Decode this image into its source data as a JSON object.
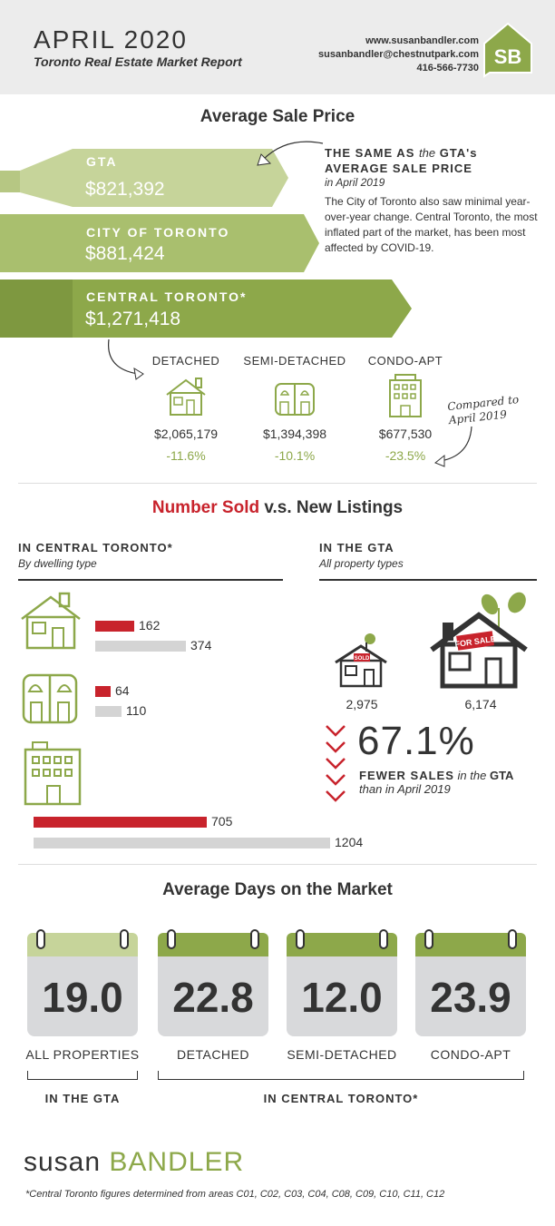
{
  "header": {
    "title": "APRIL 2020",
    "subtitle": "Toronto Real Estate Market Report",
    "website": "www.susanbandler.com",
    "email": "susanbandler@chestnutpark.com",
    "phone": "416-566-7730",
    "logo": "SB"
  },
  "avg_price": {
    "heading": "Average Sale Price",
    "gta_label": "GTA",
    "gta_value": "$821,392",
    "city_label": "CITY OF TORONTO",
    "city_value": "$881,424",
    "central_label": "CENTRAL TORONTO*",
    "central_value": "$1,271,418",
    "note_title_1": "THE SAME AS",
    "note_title_2": "the",
    "note_title_3": "GTA's",
    "note_title_4": "AVERAGE SALE PRICE",
    "note_title_5": "in April 2019",
    "note_body": "The City of Toronto also saw minimal year-over-year change. Central Toronto, the most inflated part of the market, has been most affected by COVID-19.",
    "types": [
      {
        "label": "DETACHED",
        "price": "$2,065,179",
        "change": "-11.6%"
      },
      {
        "label": "SEMI-DETACHED",
        "price": "$1,394,398",
        "change": "-10.1%"
      },
      {
        "label": "CONDO-APT",
        "price": "$677,530",
        "change": "-23.5%"
      }
    ],
    "compared_note": "Compared to April 2019"
  },
  "sold_listings": {
    "heading_red": "Number Sold",
    "heading_rest": "v.s. New Listings",
    "left_title": "IN CENTRAL TORONTO*",
    "left_sub": "By dwelling type",
    "right_title": "IN THE GTA",
    "right_sub": "All property types",
    "rows": [
      {
        "sold": "162",
        "listings": "374"
      },
      {
        "sold": "64",
        "listings": "110"
      },
      {
        "sold": "705",
        "listings": "1204"
      }
    ],
    "gta_sold": "2,975",
    "gta_listings": "6,174",
    "sold_sign": "SOLD",
    "forsale_sign": "FOR SALE",
    "pct": "67.1%",
    "fewer_1": "FEWER SALES",
    "fewer_2": "in the",
    "fewer_3": "GTA",
    "fewer_4": "than in April 2019"
  },
  "days": {
    "heading": "Average Days on the Market",
    "items": [
      {
        "value": "19.0",
        "label": "ALL PROPERTIES"
      },
      {
        "value": "22.8",
        "label": "DETACHED"
      },
      {
        "value": "12.0",
        "label": "SEMI-DETACHED"
      },
      {
        "value": "23.9",
        "label": "CONDO-APT"
      }
    ],
    "group_gta": "IN THE GTA",
    "group_central": "IN CENTRAL TORONTO*"
  },
  "footer": {
    "brand_1": "susan",
    "brand_2": "BANDLER",
    "note": "*Central Toronto figures determined from areas C01, C02, C03, C04, C08, C09, C10, C11, C12"
  },
  "colors": {
    "green": "#8da84a",
    "light_green": "#c6d49a",
    "red": "#c8232c",
    "grey": "#d4d4d4"
  }
}
